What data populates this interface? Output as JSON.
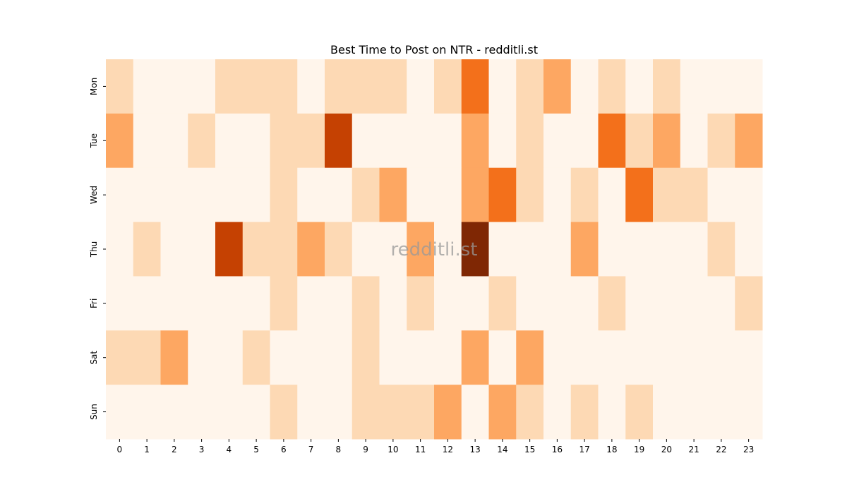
{
  "chart_data": {
    "type": "heatmap",
    "title": "Best Time to Post on NTR - redditli.st",
    "watermark": "redditli.st",
    "colormap": "Oranges",
    "x": [
      0,
      1,
      2,
      3,
      4,
      5,
      6,
      7,
      8,
      9,
      10,
      11,
      12,
      13,
      14,
      15,
      16,
      17,
      18,
      19,
      20,
      21,
      22,
      23
    ],
    "y": [
      "Mon",
      "Tue",
      "Wed",
      "Thu",
      "Fri",
      "Sat",
      "Sun"
    ],
    "values": [
      [
        1,
        0,
        0,
        0,
        1,
        1,
        1,
        0,
        1,
        1,
        1,
        0,
        1,
        3,
        0,
        1,
        2,
        0,
        1,
        0,
        1,
        0,
        0,
        0
      ],
      [
        2,
        0,
        0,
        1,
        0,
        0,
        1,
        1,
        4,
        0,
        0,
        0,
        0,
        2,
        0,
        1,
        0,
        0,
        3,
        1,
        2,
        0,
        1,
        2
      ],
      [
        0,
        0,
        0,
        0,
        0,
        0,
        1,
        0,
        0,
        1,
        2,
        0,
        0,
        2,
        3,
        1,
        0,
        1,
        0,
        3,
        1,
        1,
        0,
        0
      ],
      [
        0,
        1,
        0,
        0,
        4,
        1,
        1,
        2,
        1,
        0,
        0,
        2,
        0,
        5,
        0,
        0,
        0,
        2,
        0,
        0,
        0,
        0,
        1,
        0
      ],
      [
        0,
        0,
        0,
        0,
        0,
        0,
        1,
        0,
        0,
        1,
        0,
        1,
        0,
        0,
        1,
        0,
        0,
        0,
        1,
        0,
        0,
        0,
        0,
        1
      ],
      [
        1,
        1,
        2,
        0,
        0,
        1,
        0,
        0,
        0,
        1,
        0,
        0,
        0,
        2,
        0,
        2,
        0,
        0,
        0,
        0,
        0,
        0,
        0,
        0
      ],
      [
        0,
        0,
        0,
        0,
        0,
        0,
        1,
        0,
        0,
        1,
        1,
        1,
        2,
        0,
        2,
        1,
        0,
        1,
        0,
        1,
        0,
        0,
        0,
        0
      ]
    ]
  }
}
